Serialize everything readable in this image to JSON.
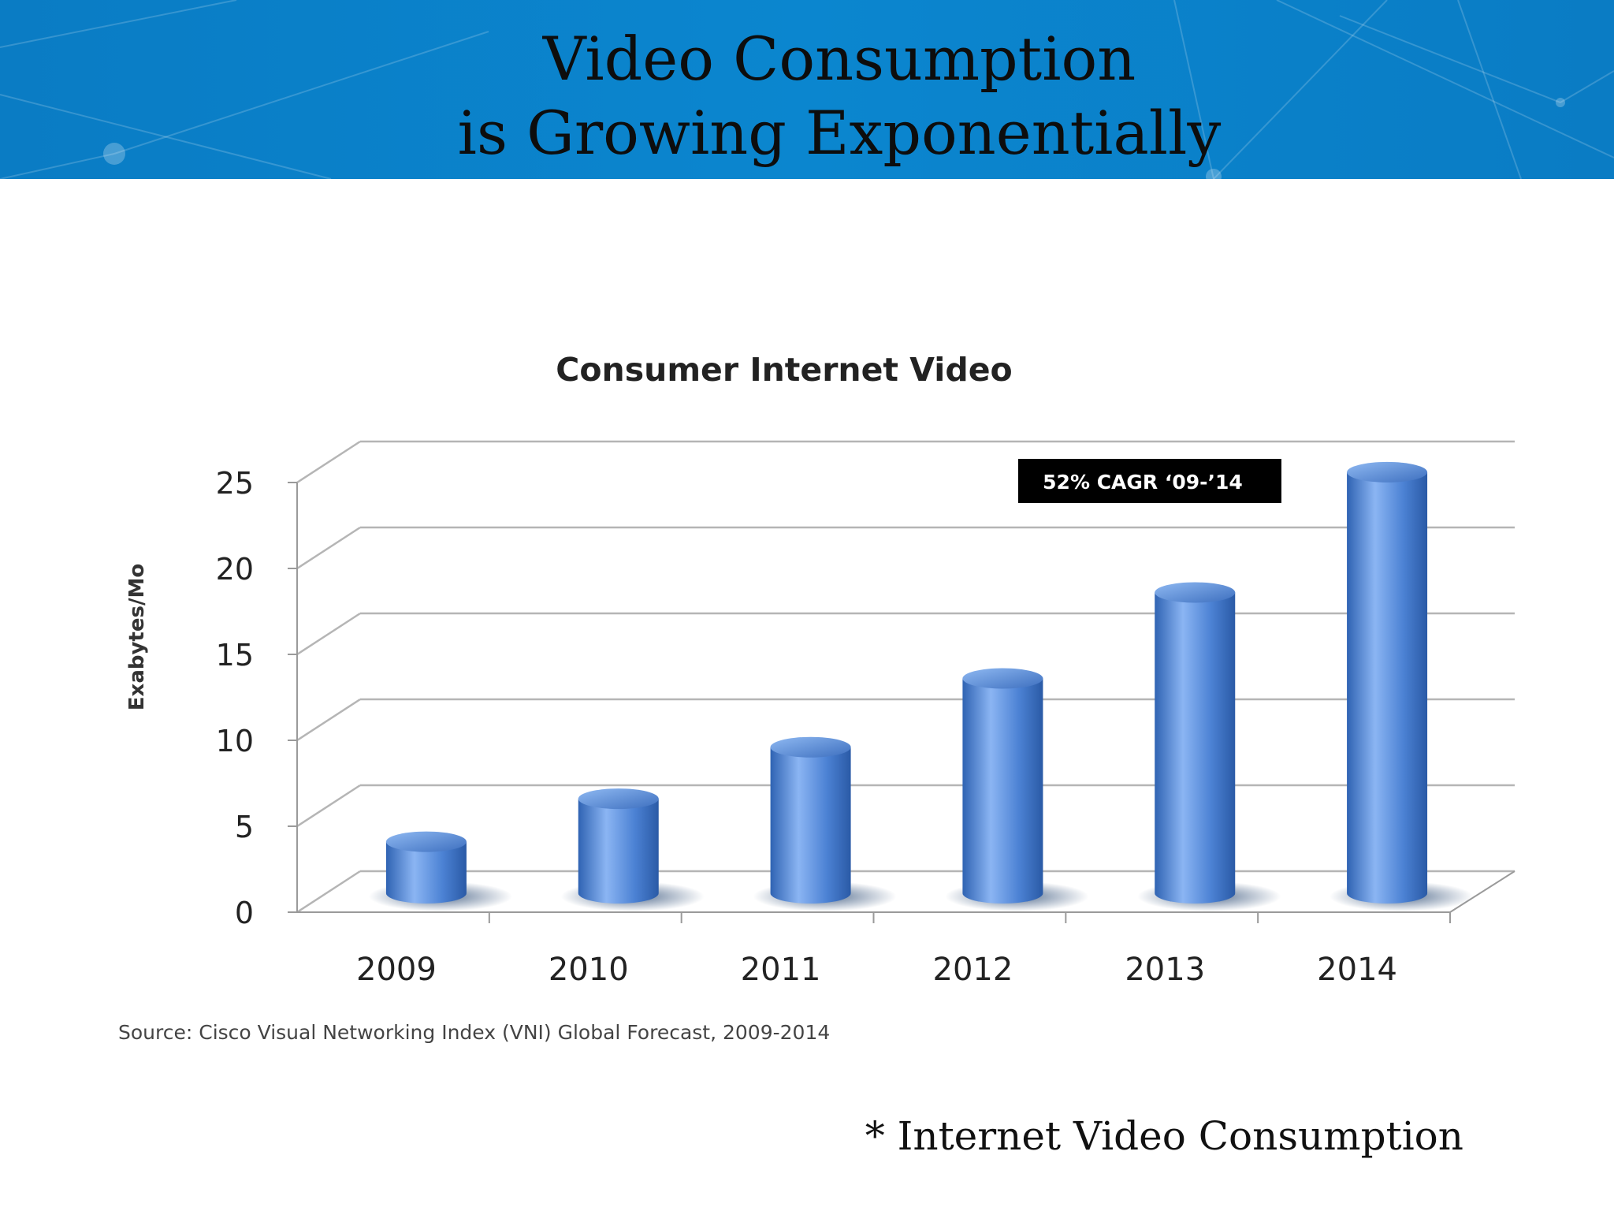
{
  "slide": {
    "title_line1": "Video Consumption",
    "title_line2": "is Growing Exponentially",
    "footnote": "* Internet Video Consumption",
    "banner_color": "#0b83cb"
  },
  "chart_data": {
    "type": "bar",
    "style": "3d-cylinder",
    "title": "Consumer Internet Video",
    "ylabel": "Exabytes/Mo",
    "xlabel": "",
    "categories": [
      "2009",
      "2010",
      "2011",
      "2012",
      "2013",
      "2014"
    ],
    "values": [
      3,
      5.5,
      8.5,
      12.5,
      17.5,
      24.5
    ],
    "ylim": [
      0,
      25
    ],
    "yticks": [
      "0",
      "5",
      "10",
      "15",
      "20",
      "25"
    ],
    "grid": true,
    "legend": "none",
    "annotation": "52% CAGR ‘09-’14",
    "source": "Source: Cisco Visual Networking Index (VNI) Global Forecast, 2009-2014",
    "bar_color": "#4f86d6"
  }
}
